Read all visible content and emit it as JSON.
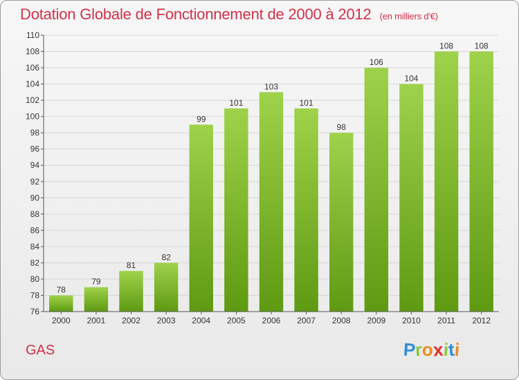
{
  "header": {
    "title": "Dotation Globale de Fonctionnement de 2000 à 2012",
    "subtitle": "(en milliers d'€)"
  },
  "footer": {
    "commune": "GAS",
    "logo_letters": [
      "P",
      "r",
      "o",
      "x",
      "i",
      "t",
      "i"
    ],
    "logo_colors": [
      "#2f8fd8",
      "#8cc63f",
      "#f08a1c",
      "#e52c2c",
      "#8cc63f",
      "#2f8fd8",
      "#f08a1c"
    ]
  },
  "chart_data": {
    "type": "bar",
    "categories": [
      "2000",
      "2001",
      "2002",
      "2003",
      "2004",
      "2005",
      "2006",
      "2007",
      "2008",
      "2009",
      "2010",
      "2011",
      "2012"
    ],
    "values": [
      78,
      79,
      81,
      82,
      99,
      101,
      103,
      101,
      98,
      106,
      104,
      108,
      108
    ],
    "title": "Dotation Globale de Fonctionnement de 2000 à 2012",
    "unit": "(en milliers d'€)",
    "ylim": [
      76,
      110
    ],
    "yticks": [
      76,
      78,
      80,
      82,
      84,
      86,
      88,
      90,
      92,
      94,
      96,
      98,
      100,
      102,
      104,
      106,
      108,
      110
    ],
    "grid": true,
    "data_labels": true,
    "bar_color": "#7fbe2c"
  }
}
